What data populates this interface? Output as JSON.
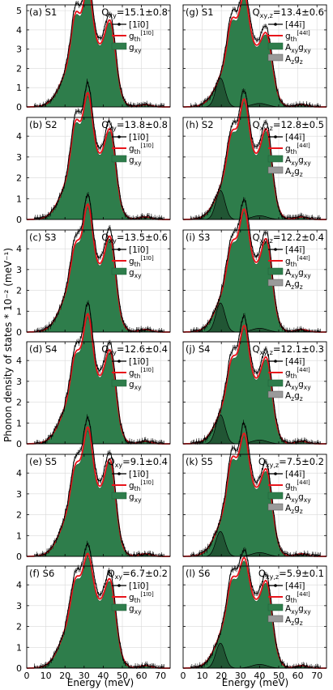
{
  "figure": {
    "ylabel": "Phonon density of states * 10⁻² (meV⁻¹)",
    "xlabel": "Energy (meV)",
    "colors": {
      "data": "#000000",
      "theory": "#e8141b",
      "fill": "#2e7d4b",
      "fill_edge": "#1f5e36",
      "sub": "#9a9a9a",
      "grid": "#d9d9d9"
    }
  },
  "chart_data": [
    {
      "type": "area",
      "panel": "(a) S1",
      "q_label": "Q",
      "q_sub": "xy",
      "q_value": "=15.1±0.8",
      "legend": [
        "[1ī0]",
        "g",
        "g"
      ],
      "legend_sub": [
        "",
        "th",
        "xy"
      ],
      "legend_sup": [
        "",
        "[1ī0]",
        ""
      ],
      "xlim": [
        0,
        75
      ],
      "ylim": [
        0,
        5.3
      ],
      "xticks": [
        0,
        10,
        20,
        30,
        40,
        50,
        60,
        70
      ],
      "yticks": [
        0,
        1,
        2,
        3,
        4,
        5
      ],
      "peaks": {
        "p1": 3.6,
        "p2": 4.4,
        "v": 2.5,
        "p3": 3.3
      },
      "sub_component": false
    },
    {
      "type": "area",
      "panel": "(b) S2",
      "q_label": "Q",
      "q_sub": "xy",
      "q_value": "=13.8±0.8",
      "legend": [
        "[1ī0]",
        "g",
        "g"
      ],
      "legend_sub": [
        "",
        "th",
        "xy"
      ],
      "legend_sup": [
        "",
        "[1ī0]",
        ""
      ],
      "xlim": [
        0,
        75
      ],
      "ylim": [
        0,
        4.9
      ],
      "xticks": [
        0,
        10,
        20,
        30,
        40,
        50,
        60,
        70
      ],
      "yticks": [
        0,
        1,
        2,
        3,
        4
      ],
      "peaks": {
        "p1": 3.5,
        "p2": 4.3,
        "v": 2.4,
        "p3": 3.2
      },
      "sub_component": false
    },
    {
      "type": "area",
      "panel": "(c) S3",
      "q_label": "Q",
      "q_sub": "xy",
      "q_value": "=13.5±0.6",
      "legend": [
        "[1ī0]",
        "g",
        "g"
      ],
      "legend_sub": [
        "",
        "th",
        "xy"
      ],
      "legend_sup": [
        "",
        "[1ī0]",
        ""
      ],
      "xlim": [
        0,
        75
      ],
      "ylim": [
        0,
        4.9
      ],
      "xticks": [
        0,
        10,
        20,
        30,
        40,
        50,
        60,
        70
      ],
      "yticks": [
        0,
        1,
        2,
        3,
        4
      ],
      "peaks": {
        "p1": 3.0,
        "p2": 4.3,
        "v": 2.5,
        "p3": 3.4
      },
      "sub_component": false
    },
    {
      "type": "area",
      "panel": "(d) S4",
      "q_label": "Q",
      "q_sub": "xy",
      "q_value": "=12.6±0.4",
      "legend": [
        "[1ī0]",
        "g",
        "g"
      ],
      "legend_sub": [
        "",
        "th",
        "xy"
      ],
      "legend_sup": [
        "",
        "[1ī0]",
        ""
      ],
      "xlim": [
        0,
        75
      ],
      "ylim": [
        0,
        4.9
      ],
      "xticks": [
        0,
        10,
        20,
        30,
        40,
        50,
        60,
        70
      ],
      "yticks": [
        0,
        1,
        2,
        3,
        4
      ],
      "peaks": {
        "p1": 3.1,
        "p2": 4.4,
        "v": 2.5,
        "p3": 3.3
      },
      "sub_component": false
    },
    {
      "type": "area",
      "panel": "(e) S5",
      "q_label": "Q",
      "q_sub": "xy",
      "q_value": "=9.1±0.4",
      "legend": [
        "[1ī0]",
        "g",
        "g"
      ],
      "legend_sub": [
        "",
        "th",
        "xy"
      ],
      "legend_sup": [
        "",
        "[1ī0]",
        ""
      ],
      "xlim": [
        0,
        75
      ],
      "ylim": [
        0,
        4.9
      ],
      "xticks": [
        0,
        10,
        20,
        30,
        40,
        50,
        60,
        70
      ],
      "yticks": [
        0,
        1,
        2,
        3,
        4
      ],
      "peaks": {
        "p1": 3.1,
        "p2": 4.3,
        "v": 2.6,
        "p3": 3.4
      },
      "sub_component": false
    },
    {
      "type": "area",
      "panel": "(f) S6",
      "q_label": "Q",
      "q_sub": "xy",
      "q_value": "=6.7±0.2",
      "legend": [
        "[1ī0]",
        "g",
        "g"
      ],
      "legend_sub": [
        "",
        "th",
        "xy"
      ],
      "legend_sup": [
        "",
        "[1ī0]",
        ""
      ],
      "xlim": [
        0,
        75
      ],
      "ylim": [
        0,
        4.9
      ],
      "xticks": [
        0,
        10,
        20,
        30,
        40,
        50,
        60,
        70
      ],
      "yticks": [
        0,
        1,
        2,
        3,
        4
      ],
      "peaks": {
        "p1": 3.0,
        "p2": 3.6,
        "v": 2.6,
        "p3": 3.0
      },
      "sub_component": false
    },
    {
      "type": "area",
      "panel": "(g) S1",
      "q_label": "Q",
      "q_sub": "xy,z",
      "q_value": "=13.4±0.6",
      "legend": [
        "[44ī]",
        "g",
        "A",
        "A"
      ],
      "legend_sub": [
        "",
        "th",
        "xy",
        "z"
      ],
      "legend_tail": [
        "",
        "",
        "g",
        "g"
      ],
      "legend_tail_sub": [
        "",
        "",
        "xy",
        "z"
      ],
      "legend_sup": [
        "",
        "[44ī]",
        "",
        ""
      ],
      "xlim": [
        0,
        75
      ],
      "ylim": [
        0,
        5.3
      ],
      "xticks": [
        0,
        10,
        20,
        30,
        40,
        50,
        60,
        70
      ],
      "yticks": [
        0,
        1,
        2,
        3,
        4,
        5
      ],
      "peaks": {
        "p1": 3.3,
        "p2": 4.0,
        "v": 2.5,
        "p3": 2.6
      },
      "sub_component": true,
      "sub_peak": 1.5
    },
    {
      "type": "area",
      "panel": "(h) S2",
      "q_label": "Q",
      "q_sub": "xy,z",
      "q_value": "=12.8±0.5",
      "legend": [
        "[44ī]",
        "g",
        "A",
        "A"
      ],
      "legend_sub": [
        "",
        "th",
        "xy",
        "z"
      ],
      "legend_tail": [
        "",
        "",
        "g",
        "g"
      ],
      "legend_tail_sub": [
        "",
        "",
        "xy",
        "z"
      ],
      "legend_sup": [
        "",
        "[44ī]",
        "",
        ""
      ],
      "xlim": [
        0,
        75
      ],
      "ylim": [
        0,
        4.9
      ],
      "xticks": [
        0,
        10,
        20,
        30,
        40,
        50,
        60,
        70
      ],
      "yticks": [
        0,
        1,
        2,
        3,
        4
      ],
      "peaks": {
        "p1": 3.0,
        "p2": 4.0,
        "v": 2.4,
        "p3": 3.2
      },
      "sub_component": true,
      "sub_peak": 1.4
    },
    {
      "type": "area",
      "panel": "(i) S3",
      "q_label": "Q",
      "q_sub": "xy,z",
      "q_value": "=12.2±0.4",
      "legend": [
        "[44ī]",
        "g",
        "A",
        "A"
      ],
      "legend_sub": [
        "",
        "th",
        "xy",
        "z"
      ],
      "legend_tail": [
        "",
        "",
        "g",
        "g"
      ],
      "legend_tail_sub": [
        "",
        "",
        "xy",
        "z"
      ],
      "legend_sup": [
        "",
        "[44ī]",
        "",
        ""
      ],
      "xlim": [
        0,
        75
      ],
      "ylim": [
        0,
        4.9
      ],
      "xticks": [
        0,
        10,
        20,
        30,
        40,
        50,
        60,
        70
      ],
      "yticks": [
        0,
        1,
        2,
        3,
        4
      ],
      "peaks": {
        "p1": 3.0,
        "p2": 4.0,
        "v": 2.6,
        "p3": 3.2
      },
      "sub_component": true,
      "sub_peak": 1.4
    },
    {
      "type": "area",
      "panel": "(j) S4",
      "q_label": "Q",
      "q_sub": "xy,z",
      "q_value": "=12.1±0.3",
      "legend": [
        "[44ī]",
        "g",
        "A",
        "A"
      ],
      "legend_sub": [
        "",
        "th",
        "xy",
        "z"
      ],
      "legend_tail": [
        "",
        "",
        "g",
        "g"
      ],
      "legend_tail_sub": [
        "",
        "",
        "xy",
        "z"
      ],
      "legend_sup": [
        "",
        "[44ī]",
        "",
        ""
      ],
      "xlim": [
        0,
        75
      ],
      "ylim": [
        0,
        4.9
      ],
      "xticks": [
        0,
        10,
        20,
        30,
        40,
        50,
        60,
        70
      ],
      "yticks": [
        0,
        1,
        2,
        3,
        4
      ],
      "peaks": {
        "p1": 2.9,
        "p2": 3.9,
        "v": 2.4,
        "p3": 3.0
      },
      "sub_component": true,
      "sub_peak": 1.4
    },
    {
      "type": "area",
      "panel": "(k) S5",
      "q_label": "Q",
      "q_sub": "xy,z",
      "q_value": "=7.5±0.2",
      "legend": [
        "[44ī]",
        "g",
        "A",
        "A"
      ],
      "legend_sub": [
        "",
        "th",
        "xy",
        "z"
      ],
      "legend_tail": [
        "",
        "",
        "g",
        "g"
      ],
      "legend_tail_sub": [
        "",
        "",
        "xy",
        "z"
      ],
      "legend_sup": [
        "",
        "[44ī]",
        "",
        ""
      ],
      "xlim": [
        0,
        75
      ],
      "ylim": [
        0,
        4.9
      ],
      "xticks": [
        0,
        10,
        20,
        30,
        40,
        50,
        60,
        70
      ],
      "yticks": [
        0,
        1,
        2,
        3,
        4
      ],
      "peaks": {
        "p1": 3.4,
        "p2": 4.0,
        "v": 2.6,
        "p3": 2.9
      },
      "sub_component": true,
      "sub_peak": 1.2
    },
    {
      "type": "area",
      "panel": "(l) S6",
      "q_label": "Q",
      "q_sub": "xy,z",
      "q_value": "=5.9±0.1",
      "legend": [
        "[44ī]",
        "g",
        "A",
        "A"
      ],
      "legend_sub": [
        "",
        "th",
        "xy",
        "z"
      ],
      "legend_tail": [
        "",
        "",
        "g",
        "g"
      ],
      "legend_tail_sub": [
        "",
        "",
        "xy",
        "z"
      ],
      "legend_sup": [
        "",
        "[44ī]",
        "",
        ""
      ],
      "xlim": [
        0,
        75
      ],
      "ylim": [
        0,
        4.9
      ],
      "xticks": [
        0,
        10,
        20,
        30,
        40,
        50,
        60,
        70
      ],
      "yticks": [
        0,
        1,
        2,
        3,
        4
      ],
      "peaks": {
        "p1": 3.0,
        "p2": 3.4,
        "v": 2.6,
        "p3": 2.9
      },
      "sub_component": true,
      "sub_peak": 1.2
    }
  ]
}
